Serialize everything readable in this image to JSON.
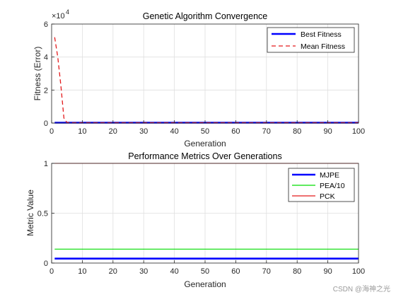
{
  "watermark": "CSDN @海神之光",
  "chart_data": [
    {
      "type": "line",
      "title": "Genetic Algorithm Convergence",
      "xlabel": "Generation",
      "ylabel": "Fitness (Error)",
      "exponent_label": "×10",
      "exponent_power": "4",
      "xlim": [
        0,
        100
      ],
      "ylim": [
        0,
        6
      ],
      "xticks": [
        "0",
        "10",
        "20",
        "30",
        "40",
        "50",
        "60",
        "70",
        "80",
        "90",
        "100"
      ],
      "yticks": [
        "0",
        "2",
        "4",
        "6"
      ],
      "grid": true,
      "legend_position": "top-right",
      "series": [
        {
          "name": "Best Fitness",
          "color": "#0000ff",
          "style": "solid",
          "x": [
            1,
            100
          ],
          "y": [
            0.02,
            0.02
          ]
        },
        {
          "name": "Mean Fitness",
          "color": "#e31a1c",
          "style": "dashed",
          "x": [
            1,
            2,
            3,
            4,
            5,
            6,
            100
          ],
          "y": [
            5.2,
            4.0,
            2.3,
            0.3,
            0.03,
            0.02,
            0.02
          ]
        }
      ]
    },
    {
      "type": "line",
      "title": "Performance Metrics Over Generations",
      "xlabel": "Generation",
      "ylabel": "Metric Value",
      "xlim": [
        0,
        100
      ],
      "ylim": [
        0,
        1
      ],
      "xticks": [
        "0",
        "10",
        "20",
        "30",
        "40",
        "50",
        "60",
        "70",
        "80",
        "90",
        "100"
      ],
      "yticks": [
        "0",
        "0.5",
        "1"
      ],
      "grid": true,
      "legend_position": "top-right",
      "series": [
        {
          "name": "MJPE",
          "color": "#0000ff",
          "style": "solid",
          "x": [
            1,
            100
          ],
          "y": [
            0.045,
            0.045
          ]
        },
        {
          "name": "PEA/10",
          "color": "#00dd00",
          "style": "solid",
          "x": [
            1,
            100
          ],
          "y": [
            0.14,
            0.14
          ]
        },
        {
          "name": "PCK",
          "color": "#e31a1c",
          "style": "solid",
          "x": [
            1,
            100
          ],
          "y": [
            1.0,
            1.0
          ]
        }
      ]
    }
  ]
}
